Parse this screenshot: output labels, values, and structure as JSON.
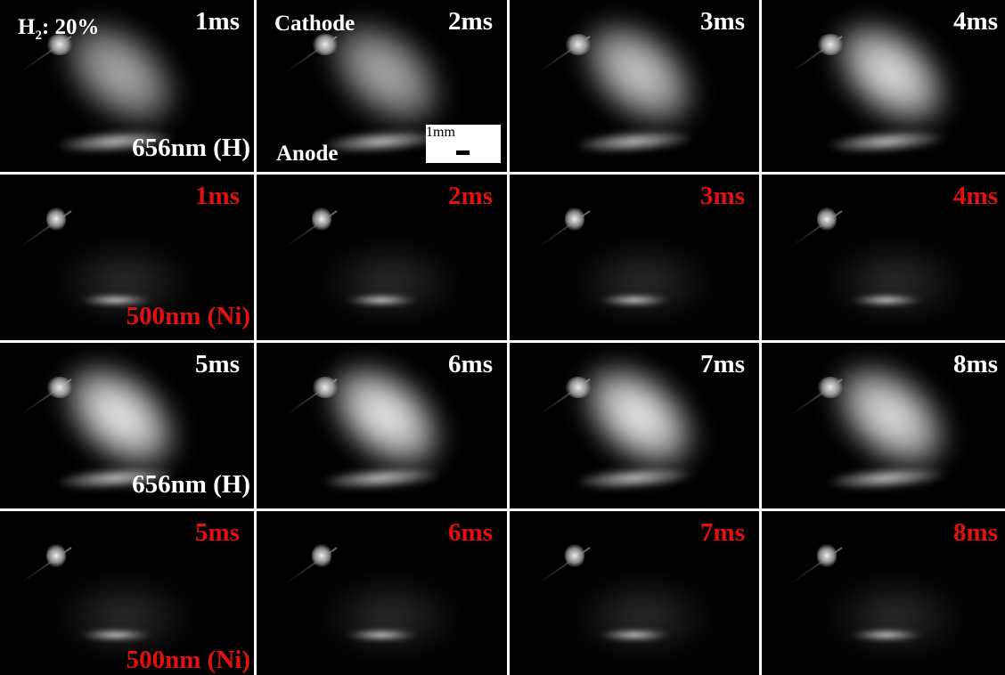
{
  "figure": {
    "gas_label": {
      "species": "H",
      "subscript": "2",
      "value": ": 20%"
    },
    "cathode_label": "Cathode",
    "anode_label": "Anode",
    "scale_bar": "1mm",
    "rows": [
      {
        "wavelength_label": "656nm (H)",
        "times": [
          "1ms",
          "2ms",
          "3ms",
          "4ms"
        ]
      },
      {
        "wavelength_label": "500nm (Ni)",
        "times": [
          "1ms",
          "2ms",
          "3ms",
          "4ms"
        ]
      },
      {
        "wavelength_label": "656nm (H)",
        "times": [
          "5ms",
          "6ms",
          "7ms",
          "8ms"
        ]
      },
      {
        "wavelength_label": "500nm (Ni)",
        "times": [
          "5ms",
          "6ms",
          "7ms",
          "8ms"
        ]
      }
    ]
  }
}
